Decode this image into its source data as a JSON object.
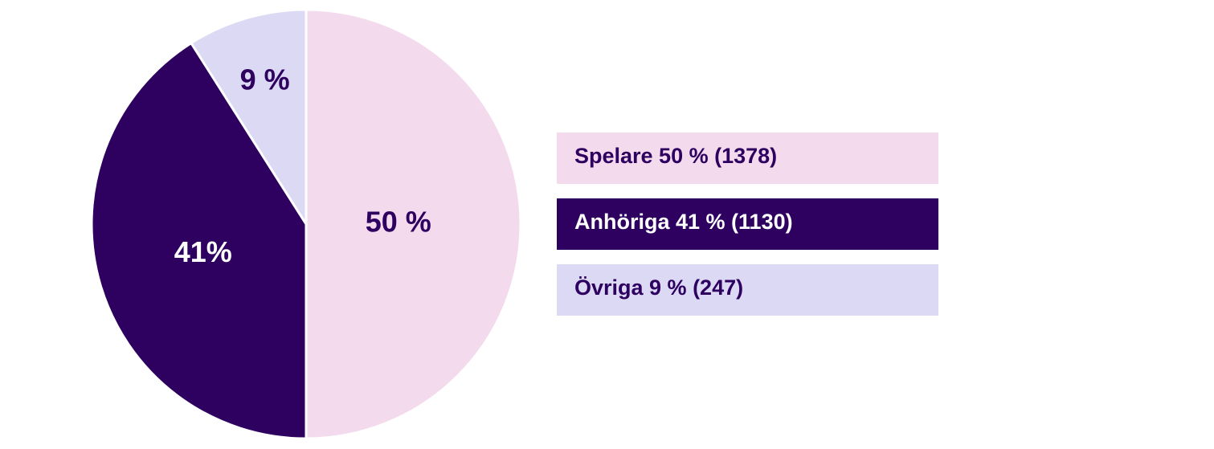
{
  "chart_data": {
    "type": "pie",
    "categories": [
      "Spelare 50 % (1378)",
      "Anhöriga 41 % (1130)",
      "Övriga 9 % (247)"
    ],
    "values": [
      50,
      41,
      9
    ],
    "value_labels": [
      "50 %",
      "41%",
      "9 %"
    ],
    "colors": [
      "#f3dbed",
      "#2e0060",
      "#dcd9f4"
    ]
  }
}
